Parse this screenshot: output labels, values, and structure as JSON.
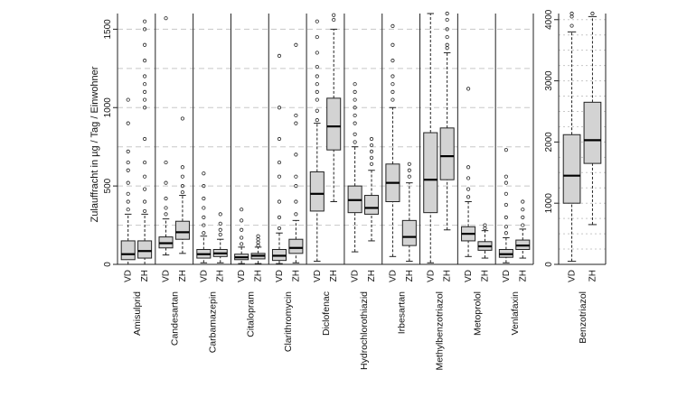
{
  "chart_data": {
    "type": "boxplot",
    "ylabel": "Zulauffracht in  µg / Tag / Einwohner",
    "group_labels": [
      "VD",
      "ZH"
    ],
    "left_axis": {
      "ylim": [
        0,
        1600
      ],
      "ticks": [
        0,
        500,
        1000,
        1500
      ]
    },
    "right_axis": {
      "ylim": [
        0,
        4100
      ],
      "ticks": [
        0,
        1000,
        2000,
        3000,
        4000
      ]
    },
    "grid": "dashed horizontal",
    "substances": [
      {
        "name": "Amisulprid",
        "axis": "left",
        "boxes": [
          {
            "group": "VD",
            "whisker_low": 0,
            "q1": 30,
            "median": 65,
            "q3": 150,
            "whisker_high": 320,
            "outliers": [
              350,
              400,
              450,
              520,
              600,
              650,
              720,
              900,
              1050
            ]
          },
          {
            "group": "ZH",
            "whisker_low": 0,
            "q1": 40,
            "median": 85,
            "q3": 150,
            "whisker_high": 320,
            "outliers": [
              340,
              400,
              480,
              560,
              650,
              800,
              1000,
              1050,
              1100,
              1150,
              1200,
              1300,
              1400,
              1500,
              1550
            ]
          }
        ]
      },
      {
        "name": "Candesartan",
        "axis": "left",
        "boxes": [
          {
            "group": "VD",
            "whisker_low": 60,
            "q1": 105,
            "median": 135,
            "q3": 175,
            "whisker_high": 290,
            "outliers": [
              320,
              360,
              420,
              520,
              650,
              1570
            ]
          },
          {
            "group": "ZH",
            "whisker_low": 70,
            "q1": 160,
            "median": 205,
            "q3": 275,
            "whisker_high": 440,
            "outliers": [
              460,
              500,
              560,
              620,
              930
            ]
          }
        ]
      },
      {
        "name": "Carbamazepin",
        "axis": "left",
        "boxes": [
          {
            "group": "VD",
            "whisker_low": 10,
            "q1": 40,
            "median": 65,
            "q3": 95,
            "whisker_high": 180,
            "outliers": [
              200,
              250,
              300,
              360,
              420,
              500,
              580
            ]
          },
          {
            "group": "ZH",
            "whisker_low": 10,
            "q1": 50,
            "median": 70,
            "q3": 95,
            "whisker_high": 160,
            "outliers": [
              190,
              220,
              260,
              320
            ]
          }
        ]
      },
      {
        "name": "Citalopram",
        "axis": "left",
        "boxes": [
          {
            "group": "VD",
            "whisker_low": 5,
            "q1": 30,
            "median": 45,
            "q3": 65,
            "whisker_high": 110,
            "outliers": [
              130,
              170,
              220,
              280,
              350
            ]
          },
          {
            "group": "ZH",
            "whisker_low": 5,
            "q1": 35,
            "median": 55,
            "q3": 70,
            "whisker_high": 110,
            "outliers": [
              120,
              140,
              160,
              180
            ]
          }
        ]
      },
      {
        "name": "Clarithromycin",
        "axis": "left",
        "boxes": [
          {
            "group": "VD",
            "whisker_low": 5,
            "q1": 25,
            "median": 55,
            "q3": 95,
            "whisker_high": 200,
            "outliers": [
              230,
              300,
              400,
              560,
              650,
              800,
              1000,
              1330
            ]
          },
          {
            "group": "ZH",
            "whisker_low": 10,
            "q1": 70,
            "median": 105,
            "q3": 160,
            "whisker_high": 280,
            "outliers": [
              320,
              400,
              500,
              560,
              700,
              900,
              950,
              1400
            ]
          }
        ]
      },
      {
        "name": "Diclofenac",
        "axis": "left",
        "boxes": [
          {
            "group": "VD",
            "whisker_low": 20,
            "q1": 340,
            "median": 450,
            "q3": 590,
            "whisker_high": 900,
            "outliers": [
              920,
              980,
              1050,
              1100,
              1150,
              1200,
              1260,
              1350,
              1450,
              1550
            ]
          },
          {
            "group": "ZH",
            "whisker_low": 400,
            "q1": 730,
            "median": 880,
            "q3": 1060,
            "whisker_high": 1500,
            "outliers": [
              1560,
              1590
            ]
          }
        ]
      },
      {
        "name": "Hydrochlorothiazid",
        "axis": "left",
        "boxes": [
          {
            "group": "VD",
            "whisker_low": 80,
            "q1": 330,
            "median": 410,
            "q3": 500,
            "whisker_high": 750,
            "outliers": [
              780,
              830,
              900,
              950,
              1000,
              1050,
              1100,
              1150
            ]
          },
          {
            "group": "ZH",
            "whisker_low": 150,
            "q1": 320,
            "median": 360,
            "q3": 440,
            "whisker_high": 600,
            "outliers": [
              640,
              680,
              720,
              760,
              800
            ]
          }
        ]
      },
      {
        "name": "Irbesartan",
        "axis": "left",
        "boxes": [
          {
            "group": "VD",
            "whisker_low": 50,
            "q1": 400,
            "median": 520,
            "q3": 640,
            "whisker_high": 1000,
            "outliers": [
              1050,
              1100,
              1150,
              1200,
              1300,
              1400,
              1520
            ]
          },
          {
            "group": "ZH",
            "whisker_low": 20,
            "q1": 120,
            "median": 175,
            "q3": 280,
            "whisker_high": 520,
            "outliers": [
              560,
              600,
              640
            ]
          }
        ]
      },
      {
        "name": "Methylbenzotriazol",
        "axis": "left",
        "boxes": [
          {
            "group": "VD",
            "whisker_low": 10,
            "q1": 330,
            "median": 540,
            "q3": 840,
            "whisker_high": 1600,
            "outliers": []
          },
          {
            "group": "ZH",
            "whisker_low": 220,
            "q1": 540,
            "median": 690,
            "q3": 870,
            "whisker_high": 1350,
            "outliers": [
              1380,
              1400,
              1450,
              1500,
              1560,
              1600
            ]
          }
        ]
      },
      {
        "name": "Metoprolol",
        "axis": "left",
        "boxes": [
          {
            "group": "VD",
            "whisker_low": 50,
            "q1": 150,
            "median": 195,
            "q3": 240,
            "whisker_high": 400,
            "outliers": [
              430,
              480,
              550,
              620,
              1120
            ]
          },
          {
            "group": "ZH",
            "whisker_low": 40,
            "q1": 90,
            "median": 115,
            "q3": 145,
            "whisker_high": 215,
            "outliers": [
              230,
              250
            ]
          }
        ]
      },
      {
        "name": "Venlafaxin",
        "axis": "left",
        "boxes": [
          {
            "group": "VD",
            "whisker_low": 10,
            "q1": 45,
            "median": 65,
            "q3": 95,
            "whisker_high": 170,
            "outliers": [
              200,
              240,
              300,
              380,
              450,
              520,
              560,
              730
            ]
          },
          {
            "group": "ZH",
            "whisker_low": 40,
            "q1": 95,
            "median": 120,
            "q3": 155,
            "whisker_high": 225,
            "outliers": [
              250,
              300,
              350,
              400
            ]
          }
        ]
      },
      {
        "name": "Benzotriazol",
        "axis": "right",
        "boxes": [
          {
            "group": "VD",
            "whisker_low": 50,
            "q1": 1000,
            "median": 1450,
            "q3": 2120,
            "whisker_high": 3800,
            "outliers": [
              3900,
              4050,
              4100
            ]
          },
          {
            "group": "ZH",
            "whisker_low": 650,
            "q1": 1650,
            "median": 2030,
            "q3": 2650,
            "whisker_high": 4050,
            "outliers": [
              4100
            ]
          }
        ]
      }
    ]
  }
}
